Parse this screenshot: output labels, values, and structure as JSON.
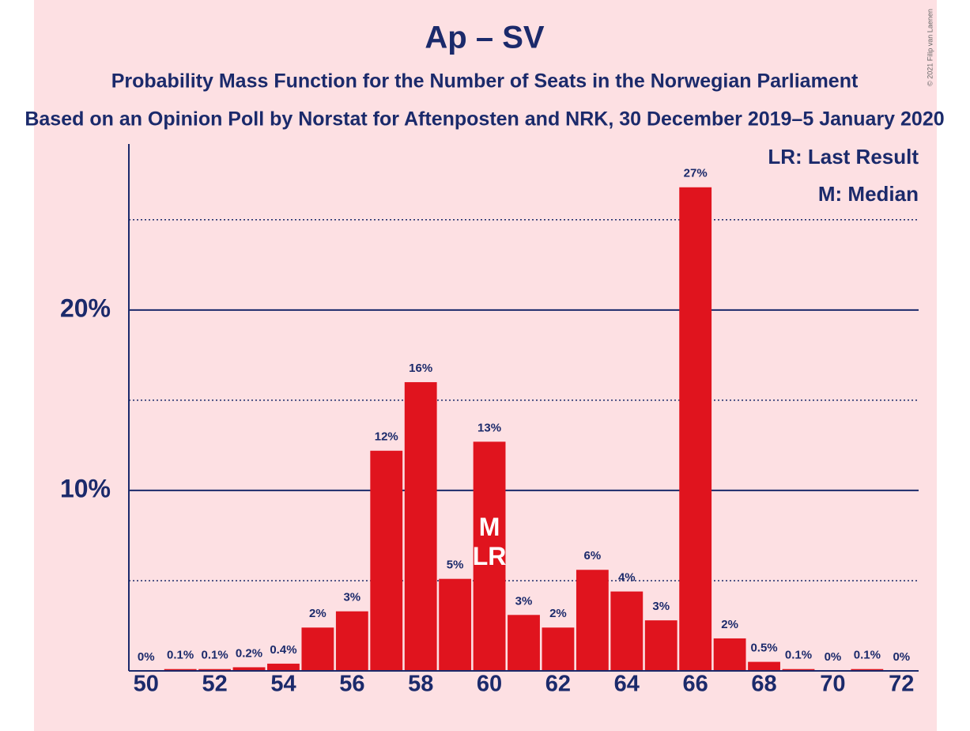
{
  "chart_data": {
    "type": "bar",
    "title": "Ap – SV",
    "subtitle": "Probability Mass Function for the Number of Seats in the Norwegian Parliament",
    "subtitle2": "Based on an Opinion Poll by Norstat for Aftenposten and NRK, 30 December 2019–5 January 2020",
    "x": [
      50,
      51,
      52,
      53,
      54,
      55,
      56,
      57,
      58,
      59,
      60,
      61,
      62,
      63,
      64,
      65,
      66,
      67,
      68,
      69,
      70,
      71,
      72
    ],
    "values": [
      0,
      0.1,
      0.1,
      0.2,
      0.4,
      2.4,
      3.3,
      12.2,
      16.0,
      5.1,
      12.7,
      3.1,
      2.4,
      5.6,
      4.4,
      2.8,
      26.8,
      1.8,
      0.5,
      0.1,
      0,
      0.1,
      0
    ],
    "value_labels": [
      "0%",
      "0.1%",
      "0.1%",
      "0.2%",
      "0.4%",
      "2%",
      "3%",
      "12%",
      "16%",
      "5%",
      "13%",
      "3%",
      "2%",
      "6%",
      "4%",
      "3%",
      "27%",
      "2%",
      "0.5%",
      "0.1%",
      "0%",
      "0.1%",
      "0%"
    ],
    "color": "#e0141e",
    "xlim": [
      49.5,
      72.5
    ],
    "xticks": [
      50,
      52,
      54,
      56,
      58,
      60,
      62,
      64,
      66,
      68,
      70,
      72
    ],
    "ylim": [
      0,
      29.2
    ],
    "yticks": [
      {
        "value": 10,
        "label": "10%"
      },
      {
        "value": 20,
        "label": "20%"
      }
    ],
    "minor_yticks": [
      5,
      15,
      25
    ],
    "grid": true,
    "annotations": [
      {
        "x": 60,
        "text": "M"
      },
      {
        "x": 60,
        "text": "LR"
      }
    ],
    "legend": [
      "LR: Last Result",
      "M: Median"
    ],
    "copyright": "© 2021 Filip van Laenen"
  }
}
